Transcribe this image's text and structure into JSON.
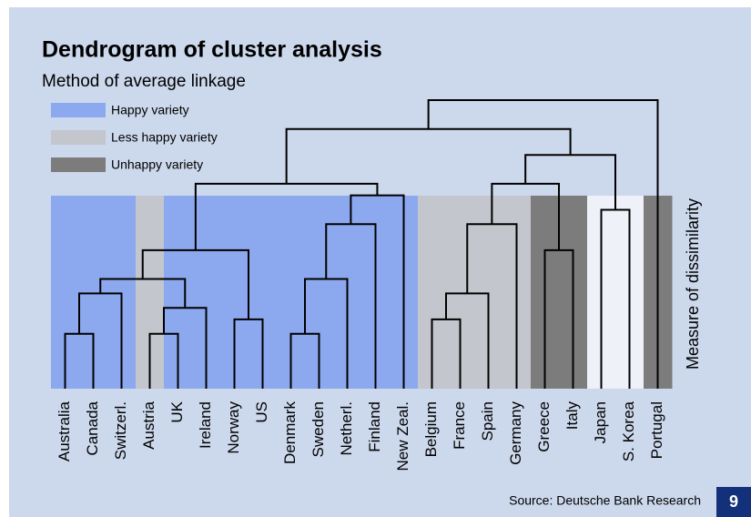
{
  "chart_data": {
    "type": "dendrogram",
    "title": "Dendrogram of cluster analysis",
    "subtitle": "Method of average linkage",
    "y_label": "Measure of dissimilarity",
    "source": "Source: Deutsche Bank Research",
    "page_number": "9",
    "leaves": [
      "Australia",
      "Canada",
      "Switzerl.",
      "Austria",
      "UK",
      "Ireland",
      "Norway",
      "US",
      "Denmark",
      "Sweden",
      "Netherl.",
      "Finland",
      "New Zeal.",
      "Belgium",
      "France",
      "Spain",
      "Germany",
      "Greece",
      "Italy",
      "Japan",
      "S. Korea",
      "Portugal"
    ],
    "leaf_colors": [
      "#8ca8ee",
      "#8ca8ee",
      "#8ca8ee",
      "#c3c6cc",
      "#8ca8ee",
      "#8ca8ee",
      "#8ca8ee",
      "#8ca8ee",
      "#8ca8ee",
      "#8ca8ee",
      "#8ca8ee",
      "#8ca8ee",
      "#8ca8ee",
      "#c3c6cc",
      "#c3c6cc",
      "#c3c6cc",
      "#c3c6cc",
      "#7c7c7c",
      "#7c7c7c",
      "#eef1f7",
      "#eef1f7",
      "#7c7c7c"
    ],
    "series": [
      {
        "name": "Happy variety",
        "color": "#8ca8ee"
      },
      {
        "name": "Less happy variety",
        "color": "#c3c6cc"
      },
      {
        "name": "Unhappy variety",
        "color": "#7c7c7c"
      }
    ],
    "merges": [
      [
        0,
        1
      ],
      [
        22,
        2
      ],
      [
        3,
        4
      ],
      [
        24,
        5
      ],
      [
        6,
        7
      ],
      [
        23,
        25
      ],
      [
        27,
        26
      ],
      [
        8,
        9
      ],
      [
        29,
        10
      ],
      [
        30,
        11
      ],
      [
        31,
        12
      ],
      [
        28,
        32
      ],
      [
        13,
        14
      ],
      [
        34,
        15
      ],
      [
        35,
        16
      ],
      [
        17,
        18
      ],
      [
        36,
        37
      ],
      [
        19,
        20
      ],
      [
        38,
        39
      ],
      [
        33,
        40
      ],
      [
        41,
        21
      ]
    ],
    "heights": [
      19,
      33,
      19,
      28,
      24,
      38,
      48,
      19,
      38,
      57,
      67,
      71,
      24,
      33,
      57,
      48,
      71,
      62,
      81,
      90,
      100
    ],
    "ylim": [
      0,
      100
    ]
  }
}
